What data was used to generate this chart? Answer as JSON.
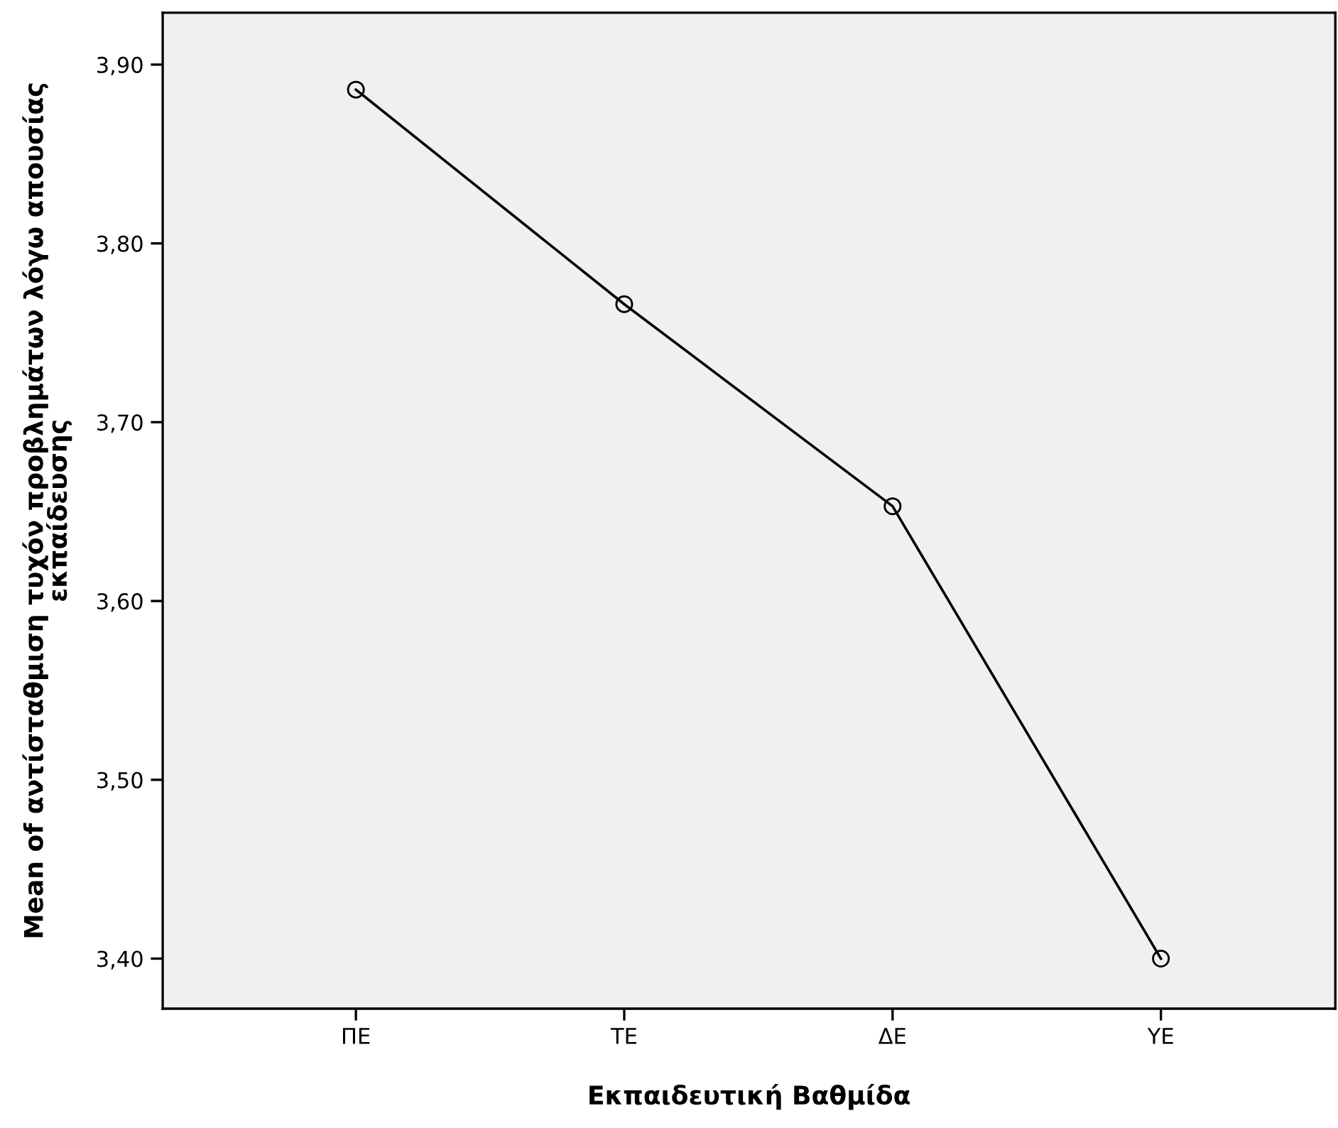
{
  "chart_data": {
    "type": "line",
    "xlabel": "Εκπαιδευτική Βαθμίδα",
    "ylabel": "Mean of αντίσταθμιση τυχόν προβλημάτων λόγω απουσίας\nεκπαίδευσης",
    "categories": [
      "ΠΕ",
      "ΤΕ",
      "ΔΕ",
      "ΥΕ"
    ],
    "series": [
      {
        "color": "#000000",
        "values": [
          3.886,
          3.766,
          3.653,
          3.4
        ]
      }
    ],
    "ylim": [
      3.372,
      3.929
    ],
    "yticks": [
      {
        "value": 3.4,
        "label": "3,40"
      },
      {
        "value": 3.5,
        "label": "3,50"
      },
      {
        "value": 3.6,
        "label": "3,60"
      },
      {
        "value": 3.7,
        "label": "3,70"
      },
      {
        "value": 3.8,
        "label": "3,80"
      },
      {
        "value": 3.9,
        "label": "3,90"
      }
    ],
    "marker": "circle",
    "line_style": "solid",
    "grid": false
  }
}
